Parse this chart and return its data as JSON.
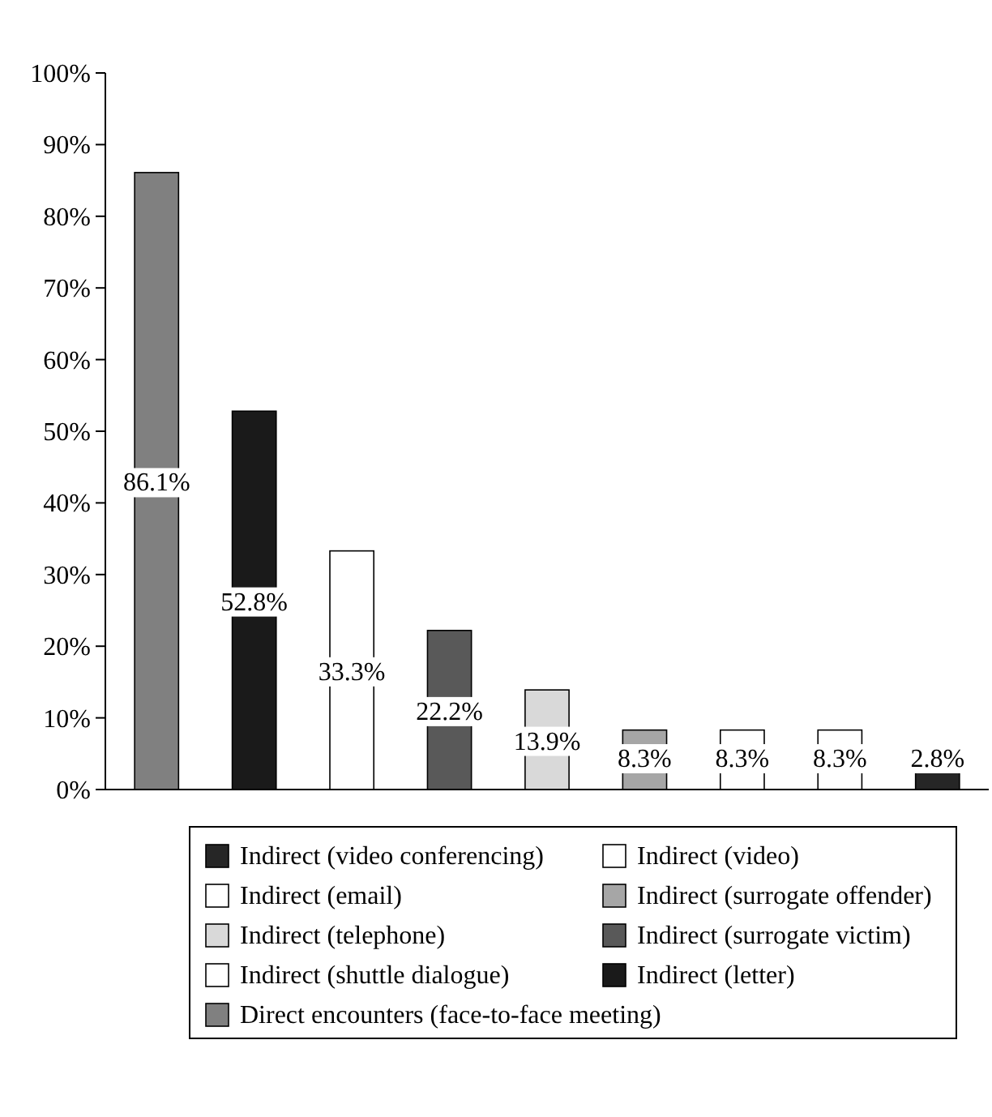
{
  "chart_data": {
    "type": "bar",
    "categories": [
      null,
      null,
      null,
      null,
      null,
      null,
      null,
      null,
      null
    ],
    "series": [
      {
        "name": "Direct encounters (face-to-face meeting)",
        "color": "#808080",
        "values": [
          86.1,
          null,
          null,
          null,
          null,
          null,
          null,
          null,
          null
        ],
        "value_labels": [
          "86.1%",
          null,
          null,
          null,
          null,
          null,
          null,
          null,
          null
        ]
      },
      {
        "name": "Indirect (letter)",
        "color": "#1a1a1a",
        "values": [
          null,
          52.8,
          null,
          null,
          null,
          null,
          null,
          null,
          null
        ],
        "value_labels": [
          null,
          "52.8%",
          null,
          null,
          null,
          null,
          null,
          null,
          null
        ]
      },
      {
        "name": "Indirect (shuttle dialogue)",
        "color": "#ffffff",
        "values": [
          null,
          null,
          33.3,
          null,
          null,
          null,
          null,
          null,
          null
        ],
        "value_labels": [
          null,
          null,
          "33.3%",
          null,
          null,
          null,
          null,
          null,
          null
        ]
      },
      {
        "name": "Indirect (surrogate victim)",
        "color": "#595959",
        "values": [
          null,
          null,
          null,
          22.2,
          null,
          null,
          null,
          null,
          null
        ],
        "value_labels": [
          null,
          null,
          null,
          "22.2%",
          null,
          null,
          null,
          null,
          null
        ]
      },
      {
        "name": "Indirect (telephone)",
        "color": "#d9d9d9",
        "values": [
          null,
          null,
          null,
          null,
          13.9,
          null,
          null,
          null,
          null
        ],
        "value_labels": [
          null,
          null,
          null,
          null,
          "13.9%",
          null,
          null,
          null,
          null
        ]
      },
      {
        "name": "Indirect (surrogate offender)",
        "color": "#a6a6a6",
        "values": [
          null,
          null,
          null,
          null,
          null,
          8.3,
          null,
          null,
          null
        ],
        "value_labels": [
          null,
          null,
          null,
          null,
          null,
          "8.3%",
          null,
          null,
          null
        ]
      },
      {
        "name": "Indirect (email)",
        "color": "#ffffff",
        "values": [
          null,
          null,
          null,
          null,
          null,
          null,
          8.3,
          null,
          null
        ],
        "value_labels": [
          null,
          null,
          null,
          null,
          null,
          null,
          "8.3%",
          null,
          null
        ]
      },
      {
        "name": "Indirect (video)",
        "color": "#ffffff",
        "values": [
          null,
          null,
          null,
          null,
          null,
          null,
          null,
          8.3,
          null
        ],
        "value_labels": [
          null,
          null,
          null,
          null,
          null,
          null,
          null,
          "8.3%",
          null
        ]
      },
      {
        "name": "Indirect (video conferencing)",
        "color": "#262626",
        "values": [
          null,
          null,
          null,
          null,
          null,
          null,
          null,
          null,
          2.8
        ],
        "value_labels": [
          null,
          null,
          null,
          null,
          null,
          null,
          null,
          null,
          "2.8%"
        ]
      }
    ],
    "ylim": [
      0,
      100
    ],
    "yticks": [
      {
        "value": 0,
        "label": "0%"
      },
      {
        "value": 10,
        "label": "10%"
      },
      {
        "value": 20,
        "label": "20%"
      },
      {
        "value": 30,
        "label": "30%"
      },
      {
        "value": 40,
        "label": "40%"
      },
      {
        "value": 50,
        "label": "50%"
      },
      {
        "value": 60,
        "label": "60%"
      },
      {
        "value": 70,
        "label": "70%"
      },
      {
        "value": 80,
        "label": "80%"
      },
      {
        "value": 90,
        "label": "90%"
      },
      {
        "value": 100,
        "label": "100%"
      }
    ],
    "grid": false,
    "legend": "bottom"
  }
}
